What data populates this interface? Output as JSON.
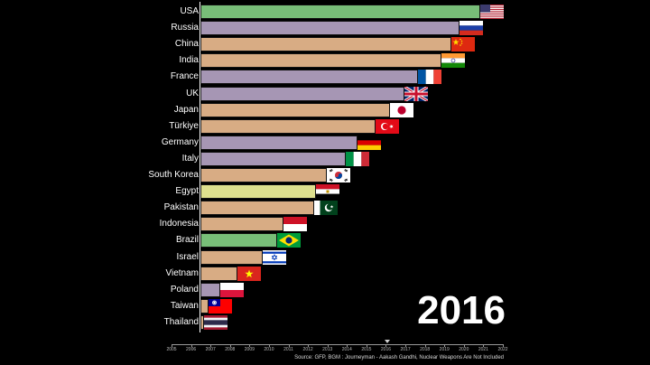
{
  "chart_data": {
    "type": "bar",
    "orientation": "horizontal",
    "categories": [
      "USA",
      "Russia",
      "China",
      "India",
      "France",
      "UK",
      "Japan",
      "Türkiye",
      "Germany",
      "Italy",
      "South Korea",
      "Egypt",
      "Pakistan",
      "Indonesia",
      "Brazil",
      "Israel",
      "Vietnam",
      "Poland",
      "Taiwan",
      "Thailand"
    ],
    "values": [
      100,
      92.5,
      89.7,
      86.0,
      77.6,
      72.8,
      67.9,
      62.7,
      56.2,
      52.0,
      45.3,
      41.4,
      40.6,
      29.8,
      27.4,
      22.3,
      13.2,
      7.1,
      3.0,
      1.2
    ],
    "bar_colors": [
      "#78be78",
      "#a696b4",
      "#d8ac84",
      "#d8ac84",
      "#a696b4",
      "#a696b4",
      "#d8ac84",
      "#d8ac84",
      "#a696b4",
      "#a696b4",
      "#d8ac84",
      "#dee08e",
      "#d8ac84",
      "#d8ac84",
      "#78be78",
      "#d8ac84",
      "#d8ac84",
      "#a696b4",
      "#d8ac84",
      "#d8ac84"
    ],
    "flags": [
      "flag-usa",
      "flag-russia",
      "flag-china",
      "flag-india",
      "flag-france",
      "flag-uk",
      "flag-japan",
      "flag-turkiye",
      "flag-germany",
      "flag-italy",
      "flag-south-korea",
      "flag-egypt",
      "flag-pakistan",
      "flag-indonesia",
      "flag-brazil",
      "flag-israel",
      "flag-vietnam",
      "flag-poland",
      "flag-taiwan",
      "flag-thailand"
    ],
    "timeline": {
      "ticks": [
        "2005",
        "2006",
        "2007",
        "2008",
        "2009",
        "2010",
        "2011",
        "2012",
        "2013",
        "2014",
        "2015",
        "2016",
        "2017",
        "2018",
        "2019",
        "2020",
        "2021",
        "2022"
      ],
      "current": 2016.08
    },
    "year_label": "2016",
    "source": "Source: GFP, BGM : Journeyman - Aakash Gandhi, Nuclear Weapons Are Not Included",
    "grid": false,
    "legend": "none"
  }
}
